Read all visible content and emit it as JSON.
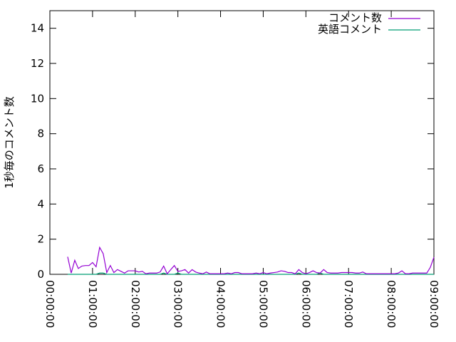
{
  "chart_data": {
    "type": "line",
    "title": "",
    "xlabel": "",
    "ylabel": "1秒毎のコメント数",
    "xlim": [
      "00:00:00",
      "09:00:00"
    ],
    "ylim": [
      0,
      15
    ],
    "xticks": [
      "00:00:00",
      "01:00:00",
      "02:00:00",
      "03:00:00",
      "04:00:00",
      "05:00:00",
      "06:00:00",
      "07:00:00",
      "08:00:00",
      "09:00:00"
    ],
    "yticks": [
      0,
      2,
      4,
      6,
      8,
      10,
      12,
      14
    ],
    "grid": false,
    "legend": "top-right",
    "x": [
      "00:25",
      "00:30",
      "00:35",
      "00:40",
      "00:45",
      "00:50",
      "00:55",
      "01:00",
      "01:05",
      "01:10",
      "01:15",
      "01:20",
      "01:25",
      "01:30",
      "01:35",
      "01:40",
      "01:45",
      "01:50",
      "01:55",
      "02:00",
      "02:05",
      "02:10",
      "02:15",
      "02:20",
      "02:25",
      "02:30",
      "02:35",
      "02:40",
      "02:45",
      "02:50",
      "02:55",
      "03:00",
      "03:05",
      "03:10",
      "03:15",
      "03:20",
      "03:25",
      "03:30",
      "03:35",
      "03:40",
      "03:45",
      "03:50",
      "03:55",
      "04:00",
      "04:05",
      "04:10",
      "04:15",
      "04:20",
      "04:25",
      "04:30",
      "04:35",
      "04:40",
      "04:45",
      "04:50",
      "04:55",
      "05:00",
      "05:05",
      "05:10",
      "05:15",
      "05:20",
      "05:25",
      "05:30",
      "05:35",
      "05:40",
      "05:45",
      "05:50",
      "05:55",
      "06:00",
      "06:05",
      "06:10",
      "06:15",
      "06:20",
      "06:25",
      "06:30",
      "06:35",
      "06:40",
      "06:45",
      "06:50",
      "06:55",
      "07:00",
      "07:05",
      "07:10",
      "07:15",
      "07:20",
      "07:25",
      "07:30",
      "07:35",
      "07:40",
      "07:45",
      "07:50",
      "07:55",
      "08:00",
      "08:05",
      "08:10",
      "08:15",
      "08:20",
      "08:25",
      "08:30",
      "08:35",
      "08:40",
      "08:45",
      "08:50",
      "08:55",
      "09:00"
    ],
    "series": [
      {
        "name": "コメント数",
        "color": "#9400d3",
        "values": [
          1.0,
          0.07,
          0.8,
          0.33,
          0.47,
          0.5,
          0.5,
          0.67,
          0.43,
          1.53,
          1.17,
          0.1,
          0.5,
          0.1,
          0.27,
          0.17,
          0.07,
          0.2,
          0.2,
          0.2,
          0.13,
          0.17,
          0.03,
          0.07,
          0.07,
          0.07,
          0.13,
          0.47,
          0.03,
          0.27,
          0.5,
          0.17,
          0.2,
          0.27,
          0.07,
          0.27,
          0.13,
          0.07,
          0.03,
          0.13,
          0.03,
          0.03,
          0.03,
          0.03,
          0.03,
          0.07,
          0.03,
          0.1,
          0.1,
          0.03,
          0.03,
          0.03,
          0.03,
          0.07,
          0.03,
          0.1,
          0.03,
          0.07,
          0.1,
          0.13,
          0.2,
          0.17,
          0.1,
          0.1,
          0.03,
          0.27,
          0.1,
          0.03,
          0.1,
          0.2,
          0.1,
          0.07,
          0.27,
          0.1,
          0.07,
          0.07,
          0.07,
          0.1,
          0.1,
          0.1,
          0.1,
          0.07,
          0.07,
          0.13,
          0.03,
          0.03,
          0.03,
          0.03,
          0.03,
          0.03,
          0.03,
          0.03,
          0.03,
          0.07,
          0.2,
          0.03,
          0.03,
          0.07,
          0.07,
          0.07,
          0.07,
          0.07,
          0.4,
          0.97
        ]
      },
      {
        "name": "英語コメント",
        "color": "#009e73",
        "values": [
          0,
          0,
          0,
          0,
          0,
          0,
          0,
          0,
          0,
          0.07,
          0.07,
          0,
          0,
          0,
          0,
          0,
          0,
          0,
          0,
          0,
          0,
          0,
          0,
          0,
          0,
          0,
          0,
          0.07,
          0,
          0,
          0,
          0.07,
          0,
          0,
          0,
          0,
          0,
          0,
          0,
          0,
          0,
          0,
          0,
          0,
          0,
          0,
          0,
          0,
          0,
          0,
          0,
          0,
          0,
          0,
          0,
          0,
          0,
          0,
          0,
          0,
          0,
          0,
          0,
          0,
          0,
          0.07,
          0,
          0,
          0,
          0,
          0,
          0.07,
          0,
          0,
          0,
          0,
          0,
          0,
          0,
          0,
          0,
          0,
          0,
          0,
          0,
          0,
          0,
          0,
          0,
          0,
          0,
          0,
          0,
          0,
          0,
          0,
          0,
          0,
          0,
          0,
          0,
          0,
          0,
          0
        ]
      }
    ]
  }
}
